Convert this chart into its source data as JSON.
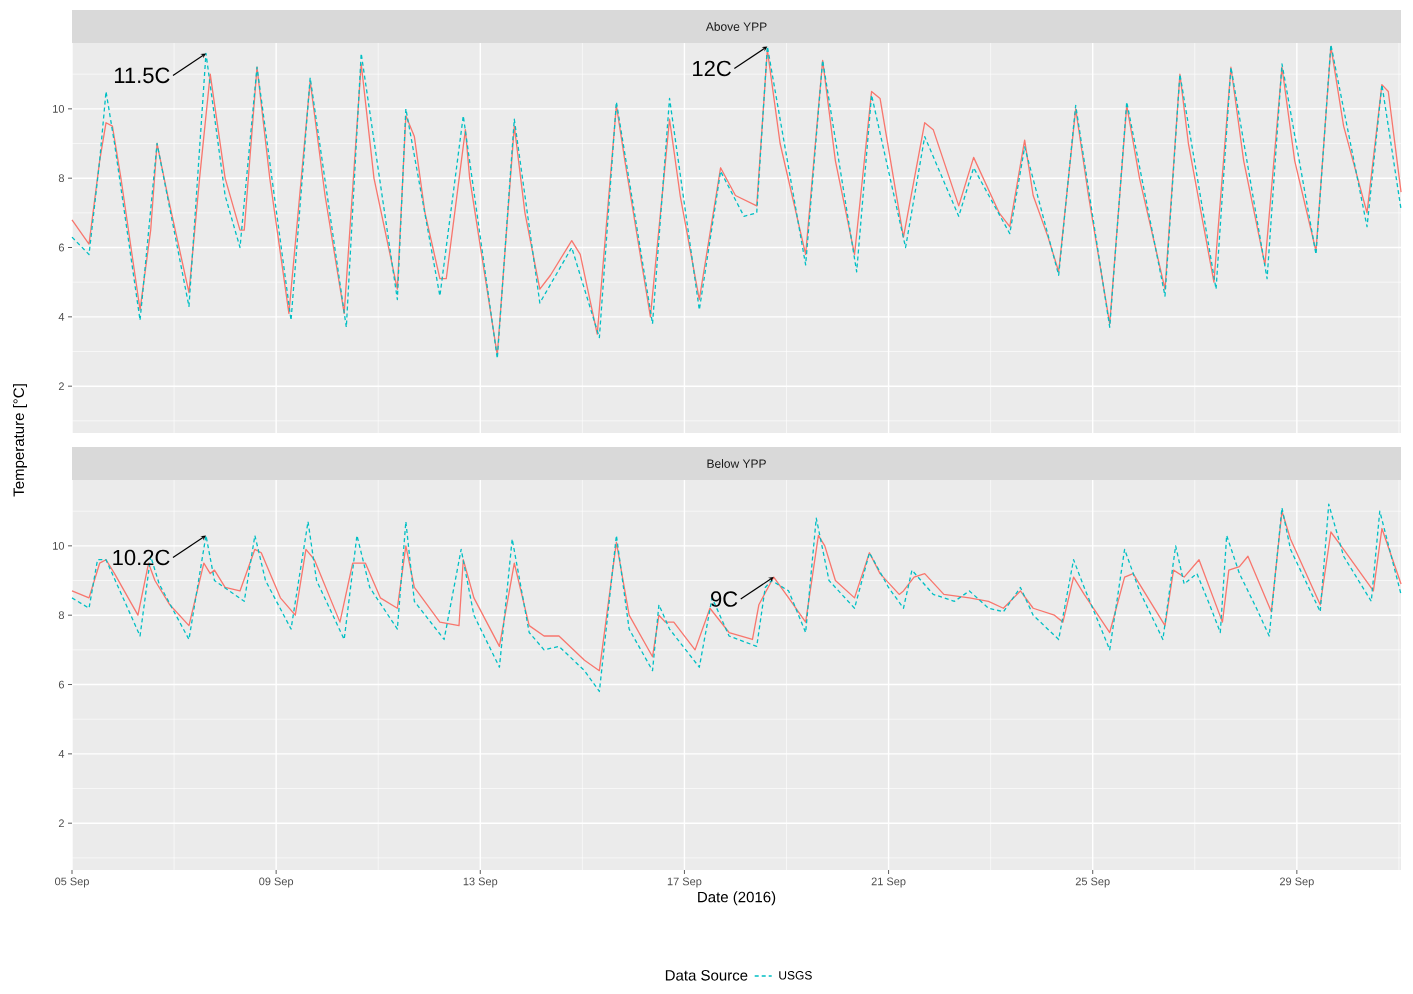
{
  "chart_data": [
    {
      "type": "line",
      "title": "Above YPP",
      "ylabel": "Temperature [°C]",
      "xlim": [
        "2016-09-05T00:00",
        "2016-10-01T01:00"
      ],
      "ylim": [
        0.65,
        11.9
      ],
      "grid": true,
      "tick_labels": "y",
      "xticks": [
        {
          "value": "2016-09-05",
          "label": null
        },
        {
          "value": "2016-09-09",
          "label": null
        },
        {
          "value": "2016-09-13",
          "label": null
        },
        {
          "value": "2016-09-17",
          "label": null
        },
        {
          "value": "2016-09-21",
          "label": null
        },
        {
          "value": "2016-09-25",
          "label": null
        },
        {
          "value": "2016-09-29",
          "label": null
        }
      ],
      "yticks": [
        2,
        4,
        6,
        8,
        10
      ],
      "series": [
        {
          "color": "#f8766d",
          "line_style": "solid",
          "x": [
            "2016-09-05T00:00",
            "2016-09-05T08:00",
            "2016-09-05T13:00",
            "2016-09-05T16:00",
            "2016-09-05T19:00",
            "2016-09-05T23:00",
            "2016-09-06T08:00",
            "2016-09-06T13:00",
            "2016-09-06T16:00",
            "2016-09-06T21:00",
            "2016-09-07T07:00",
            "2016-09-07T12:00",
            "2016-09-07T17:00",
            "2016-09-08T00:00",
            "2016-09-08T07:00",
            "2016-09-08T09:00",
            "2016-09-08T15:00",
            "2016-09-08T21:00",
            "2016-09-09T06:00",
            "2016-09-09T16:00",
            "2016-09-09T23:00",
            "2016-09-10T08:00",
            "2016-09-10T16:00",
            "2016-09-10T22:00",
            "2016-09-11T09:00",
            "2016-09-11T13:00",
            "2016-09-11T17:00",
            "2016-09-11T22:00",
            "2016-09-12T05:00",
            "2016-09-12T08:00",
            "2016-09-12T17:00",
            "2016-09-12T19:00",
            "2016-09-13T08:00",
            "2016-09-13T16:00",
            "2016-09-13T21:00",
            "2016-09-14T04:00",
            "2016-09-14T09:00",
            "2016-09-14T19:00",
            "2016-09-14T23:00",
            "2016-09-15T07:00",
            "2016-09-15T16:00",
            "2016-09-15T20:00",
            "2016-09-16T08:00",
            "2016-09-16T17:00",
            "2016-09-16T22:00",
            "2016-09-17T07:00",
            "2016-09-17T17:00",
            "2016-09-18T00:00",
            "2016-09-18T10:00",
            "2016-09-18T15:00",
            "2016-09-18T21:00",
            "2016-09-19T09:00",
            "2016-09-19T17:00",
            "2016-09-19T23:00",
            "2016-09-20T08:00",
            "2016-09-20T16:00",
            "2016-09-20T20:00",
            "2016-09-21T07:00",
            "2016-09-21T17:00",
            "2016-09-21T21:00",
            "2016-09-22T09:00",
            "2016-09-22T16:00",
            "2016-09-23T04:00",
            "2016-09-23T09:00",
            "2016-09-23T16:00",
            "2016-09-23T20:00",
            "2016-09-24T03:00",
            "2016-09-24T08:00",
            "2016-09-24T16:00",
            "2016-09-24T22:00",
            "2016-09-25T08:00",
            "2016-09-25T16:00",
            "2016-09-25T22:00",
            "2016-09-26T10:00",
            "2016-09-26T17:00",
            "2016-09-26T21:00",
            "2016-09-27T09:00",
            "2016-09-27T17:00",
            "2016-09-27T23:00",
            "2016-09-28T09:00",
            "2016-09-28T17:00",
            "2016-09-28T23:00",
            "2016-09-29T09:00",
            "2016-09-29T16:00",
            "2016-09-29T22:00",
            "2016-09-30T09:00",
            "2016-09-30T16:00",
            "2016-09-30T19:00",
            "2016-10-01T01:00"
          ],
          "values": [
            6.8,
            6.1,
            8.5,
            9.6,
            9.5,
            8.0,
            4.2,
            6.5,
            9.0,
            7.5,
            4.7,
            8.0,
            11.0,
            8.0,
            6.5,
            6.5,
            11.2,
            8.0,
            4.1,
            10.8,
            7.5,
            4.1,
            11.3,
            8.0,
            4.8,
            9.8,
            9.2,
            7.0,
            5.1,
            5.1,
            9.4,
            8.0,
            2.9,
            9.5,
            7.0,
            4.8,
            5.2,
            6.2,
            5.8,
            3.5,
            10.1,
            8.5,
            4.0,
            9.7,
            7.5,
            4.5,
            8.3,
            7.5,
            7.2,
            11.7,
            9.0,
            5.8,
            11.4,
            8.5,
            5.8,
            10.5,
            10.3,
            6.3,
            9.6,
            9.4,
            7.2,
            8.6,
            7.0,
            6.6,
            9.1,
            7.5,
            6.3,
            5.3,
            10.0,
            7.5,
            3.8,
            10.1,
            8.0,
            4.8,
            11.0,
            9.0,
            5.0,
            11.2,
            8.5,
            5.5,
            11.2,
            8.5,
            5.9,
            11.8,
            9.5,
            7.0,
            10.7,
            10.5,
            7.6
          ]
        },
        {
          "color": "#00bfc4",
          "line_style": "dashed",
          "x": [
            "2016-09-05T00:00",
            "2016-09-05T08:00",
            "2016-09-05T13:00",
            "2016-09-05T16:00",
            "2016-09-05T20:00",
            "2016-09-06T08:00",
            "2016-09-06T16:00",
            "2016-09-07T07:00",
            "2016-09-07T15:00",
            "2016-09-08T00:00",
            "2016-09-08T07:00",
            "2016-09-08T15:00",
            "2016-09-09T07:00",
            "2016-09-09T16:00",
            "2016-09-10T09:00",
            "2016-09-10T16:00",
            "2016-09-11T09:00",
            "2016-09-11T13:00",
            "2016-09-12T05:00",
            "2016-09-12T16:00",
            "2016-09-13T08:00",
            "2016-09-13T16:00",
            "2016-09-14T04:00",
            "2016-09-14T19:00",
            "2016-09-15T08:00",
            "2016-09-15T16:00",
            "2016-09-16T09:00",
            "2016-09-16T17:00",
            "2016-09-17T07:00",
            "2016-09-17T17:00",
            "2016-09-18T04:00",
            "2016-09-18T10:00",
            "2016-09-18T15:00",
            "2016-09-19T09:00",
            "2016-09-19T17:00",
            "2016-09-20T09:00",
            "2016-09-20T16:00",
            "2016-09-21T08:00",
            "2016-09-21T17:00",
            "2016-09-22T09:00",
            "2016-09-22T16:00",
            "2016-09-23T09:00",
            "2016-09-23T16:00",
            "2016-09-24T08:00",
            "2016-09-24T16:00",
            "2016-09-25T08:00",
            "2016-09-25T16:00",
            "2016-09-26T10:00",
            "2016-09-26T17:00",
            "2016-09-27T10:00",
            "2016-09-27T17:00",
            "2016-09-28T10:00",
            "2016-09-28T17:00",
            "2016-09-29T09:00",
            "2016-09-29T16:00",
            "2016-09-30T09:00",
            "2016-09-30T16:00",
            "2016-10-01T01:00"
          ],
          "values": [
            6.3,
            5.8,
            8.5,
            10.5,
            9.0,
            3.9,
            9.0,
            4.3,
            11.6,
            7.5,
            6.0,
            11.2,
            3.9,
            10.9,
            3.7,
            11.6,
            4.5,
            10.0,
            4.6,
            9.8,
            2.8,
            9.7,
            4.4,
            6.0,
            3.4,
            10.2,
            3.8,
            10.3,
            4.2,
            8.2,
            6.9,
            7.0,
            11.8,
            5.5,
            11.4,
            5.3,
            10.4,
            6.0,
            9.2,
            6.9,
            8.3,
            6.4,
            8.9,
            5.2,
            10.1,
            3.7,
            10.2,
            4.6,
            11.0,
            4.8,
            11.2,
            5.1,
            11.3,
            5.8,
            11.85,
            6.6,
            10.7,
            7.1
          ]
        }
      ],
      "annotations": [
        {
          "text": "11.5C",
          "x": "2016-09-07T15:00",
          "y": 11.6
        },
        {
          "text": "12C",
          "x": "2016-09-18T15:00",
          "y": 11.8
        }
      ]
    },
    {
      "type": "line",
      "title": "Below YPP",
      "xlabel": "Date (2016)",
      "legend_title": "Data Source",
      "legend": "bottom",
      "xlim": [
        "2016-09-05T00:00",
        "2016-10-01T01:00"
      ],
      "ylim": [
        0.65,
        11.9
      ],
      "grid": true,
      "xticks": [
        {
          "value": "2016-09-05",
          "label": "05 Sep"
        },
        {
          "value": "2016-09-09",
          "label": "09 Sep"
        },
        {
          "value": "2016-09-13",
          "label": "13 Sep"
        },
        {
          "value": "2016-09-17",
          "label": "17 Sep"
        },
        {
          "value": "2016-09-21",
          "label": "21 Sep"
        },
        {
          "value": "2016-09-25",
          "label": "25 Sep"
        },
        {
          "value": "2016-09-29",
          "label": "29 Sep"
        }
      ],
      "yticks": [
        2,
        4,
        6,
        8,
        10
      ],
      "series": [
        {
          "color": "#f8766d",
          "line_style": "solid",
          "x": [
            "2016-09-05T00:00",
            "2016-09-05T08:00",
            "2016-09-05T13:00",
            "2016-09-05T16:00",
            "2016-09-05T20:00",
            "2016-09-06T07:00",
            "2016-09-06T12:00",
            "2016-09-06T15:00",
            "2016-09-06T22:00",
            "2016-09-07T07:00",
            "2016-09-07T14:00",
            "2016-09-07T17:00",
            "2016-09-07T19:00",
            "2016-09-08T00:00",
            "2016-09-08T07:00",
            "2016-09-08T14:00",
            "2016-09-08T17:00",
            "2016-09-09T02:00",
            "2016-09-09T09:00",
            "2016-09-09T14:00",
            "2016-09-09T18:00",
            "2016-09-10T06:00",
            "2016-09-10T12:00",
            "2016-09-10T18:00",
            "2016-09-11T01:00",
            "2016-09-11T09:00",
            "2016-09-11T13:00",
            "2016-09-11T17:00",
            "2016-09-12T05:00",
            "2016-09-12T14:00",
            "2016-09-12T16:00",
            "2016-09-12T21:00",
            "2016-09-13T09:00",
            "2016-09-13T16:00",
            "2016-09-13T23:00",
            "2016-09-14T06:00",
            "2016-09-14T13:00",
            "2016-09-15T01:00",
            "2016-09-15T08:00",
            "2016-09-15T16:00",
            "2016-09-15T22:00",
            "2016-09-16T09:00",
            "2016-09-16T12:00",
            "2016-09-16T15:00",
            "2016-09-16T19:00",
            "2016-09-17T05:00",
            "2016-09-17T12:00",
            "2016-09-17T21:00",
            "2016-09-18T08:00",
            "2016-09-18T11:00",
            "2016-09-18T18:00",
            "2016-09-19T01:00",
            "2016-09-19T09:00",
            "2016-09-19T15:00",
            "2016-09-19T18:00",
            "2016-09-19T23:00",
            "2016-09-20T08:00",
            "2016-09-20T15:00",
            "2016-09-20T20:00",
            "2016-09-21T05:00",
            "2016-09-21T07:00",
            "2016-09-21T12:00",
            "2016-09-21T17:00",
            "2016-09-22T02:00",
            "2016-09-22T14:00",
            "2016-09-22T23:00",
            "2016-09-23T06:00",
            "2016-09-23T14:00",
            "2016-09-23T20:00",
            "2016-09-24T06:00",
            "2016-09-24T10:00",
            "2016-09-24T15:00",
            "2016-09-24T20:00",
            "2016-09-25T08:00",
            "2016-09-25T15:00",
            "2016-09-25T19:00",
            "2016-09-26T10:00",
            "2016-09-26T14:00",
            "2016-09-26T19:00",
            "2016-09-27T02:00",
            "2016-09-27T13:00",
            "2016-09-27T16:00",
            "2016-09-27T21:00",
            "2016-09-28T01:00",
            "2016-09-28T12:00",
            "2016-09-28T17:00",
            "2016-09-28T21:00",
            "2016-09-29T11:00",
            "2016-09-29T16:00",
            "2016-09-29T22:00",
            "2016-09-30T12:00",
            "2016-09-30T16:00",
            "2016-10-01T01:00"
          ],
          "values": [
            8.7,
            8.5,
            9.5,
            9.6,
            9.2,
            8.0,
            9.5,
            9.0,
            8.3,
            7.7,
            9.5,
            9.2,
            9.3,
            8.8,
            8.7,
            9.9,
            9.8,
            8.5,
            8.0,
            9.9,
            9.6,
            7.8,
            9.5,
            9.5,
            8.5,
            8.2,
            10.0,
            8.8,
            7.8,
            7.7,
            9.6,
            8.5,
            7.1,
            9.5,
            7.7,
            7.4,
            7.4,
            6.7,
            6.4,
            10.1,
            8.0,
            6.8,
            8.0,
            7.8,
            7.8,
            7.0,
            8.2,
            7.5,
            7.3,
            8.3,
            9.1,
            8.5,
            7.8,
            10.3,
            10.0,
            9.0,
            8.5,
            9.8,
            9.2,
            8.6,
            8.7,
            9.1,
            9.2,
            8.6,
            8.5,
            8.4,
            8.2,
            8.7,
            8.2,
            8.0,
            7.8,
            9.1,
            8.6,
            7.5,
            9.1,
            9.2,
            7.7,
            9.3,
            9.1,
            9.6,
            7.8,
            9.3,
            9.4,
            9.7,
            8.1,
            11.0,
            10.2,
            8.3,
            10.4,
            9.9,
            8.7,
            10.5,
            8.9
          ]
        },
        {
          "name": "USGS",
          "color": "#00bfc4",
          "line_style": "dashed",
          "x": [
            "2016-09-05T00:00",
            "2016-09-05T08:00",
            "2016-09-05T12:00",
            "2016-09-05T16:00",
            "2016-09-06T08:00",
            "2016-09-06T13:00",
            "2016-09-06T17:00",
            "2016-09-07T07:00",
            "2016-09-07T15:00",
            "2016-09-07T19:00",
            "2016-09-08T09:00",
            "2016-09-08T14:00",
            "2016-09-08T19:00",
            "2016-09-09T07:00",
            "2016-09-09T15:00",
            "2016-09-09T19:00",
            "2016-09-10T08:00",
            "2016-09-10T14:00",
            "2016-09-10T20:00",
            "2016-09-11T09:00",
            "2016-09-11T13:00",
            "2016-09-11T17:00",
            "2016-09-12T07:00",
            "2016-09-12T15:00",
            "2016-09-12T21:00",
            "2016-09-13T09:00",
            "2016-09-13T15:00",
            "2016-09-13T23:00",
            "2016-09-14T06:00",
            "2016-09-14T13:00",
            "2016-09-15T01:00",
            "2016-09-15T08:00",
            "2016-09-15T16:00",
            "2016-09-15T22:00",
            "2016-09-16T09:00",
            "2016-09-16T12:00",
            "2016-09-16T17:00",
            "2016-09-17T07:00",
            "2016-09-17T13:00",
            "2016-09-17T21:00",
            "2016-09-18T10:00",
            "2016-09-18T14:00",
            "2016-09-18T17:00",
            "2016-09-19T01:00",
            "2016-09-19T09:00",
            "2016-09-19T14:00",
            "2016-09-19T20:00",
            "2016-09-20T08:00",
            "2016-09-20T15:00",
            "2016-09-21T00:00",
            "2016-09-21T07:00",
            "2016-09-21T11:00",
            "2016-09-21T21:00",
            "2016-09-22T07:00",
            "2016-09-22T14:00",
            "2016-09-22T23:00",
            "2016-09-23T06:00",
            "2016-09-23T14:00",
            "2016-09-23T20:00",
            "2016-09-24T08:00",
            "2016-09-24T15:00",
            "2016-09-24T20:00",
            "2016-09-25T08:00",
            "2016-09-25T15:00",
            "2016-09-25T22:00",
            "2016-09-26T09:00",
            "2016-09-26T15:00",
            "2016-09-26T19:00",
            "2016-09-27T01:00",
            "2016-09-27T07:00",
            "2016-09-27T12:00",
            "2016-09-27T15:00",
            "2016-09-27T21:00",
            "2016-09-28T05:00",
            "2016-09-28T11:00",
            "2016-09-28T17:00",
            "2016-09-28T21:00",
            "2016-09-29T11:00",
            "2016-09-29T15:00",
            "2016-09-29T22:00",
            "2016-09-30T11:00",
            "2016-09-30T15:00",
            "2016-10-01T01:00"
          ],
          "values": [
            8.5,
            8.2,
            9.6,
            9.6,
            7.4,
            9.7,
            8.9,
            7.3,
            10.3,
            9.0,
            8.4,
            10.3,
            9.0,
            7.6,
            10.7,
            9.0,
            7.3,
            10.3,
            8.8,
            7.6,
            10.7,
            8.4,
            7.3,
            9.9,
            8.0,
            6.5,
            10.2,
            7.5,
            7.0,
            7.1,
            6.4,
            5.8,
            10.3,
            7.6,
            6.4,
            8.3,
            7.6,
            6.5,
            8.5,
            7.4,
            7.1,
            8.8,
            9.0,
            8.7,
            7.5,
            10.8,
            9.0,
            8.2,
            9.8,
            8.8,
            8.2,
            9.3,
            8.6,
            8.4,
            8.7,
            8.2,
            8.1,
            8.8,
            8.0,
            7.3,
            9.6,
            8.8,
            7.0,
            9.9,
            8.7,
            7.3,
            10.0,
            8.9,
            9.2,
            8.3,
            7.5,
            10.3,
            9.2,
            8.2,
            7.4,
            11.1,
            9.9,
            8.1,
            11.2,
            9.7,
            8.4,
            11.0,
            8.6
          ]
        }
      ],
      "annotations": [
        {
          "text": "10.2C",
          "x": "2016-09-07T15:00",
          "y": 10.3
        },
        {
          "text": "9C",
          "x": "2016-09-18T18:00",
          "y": 9.1
        }
      ]
    }
  ]
}
